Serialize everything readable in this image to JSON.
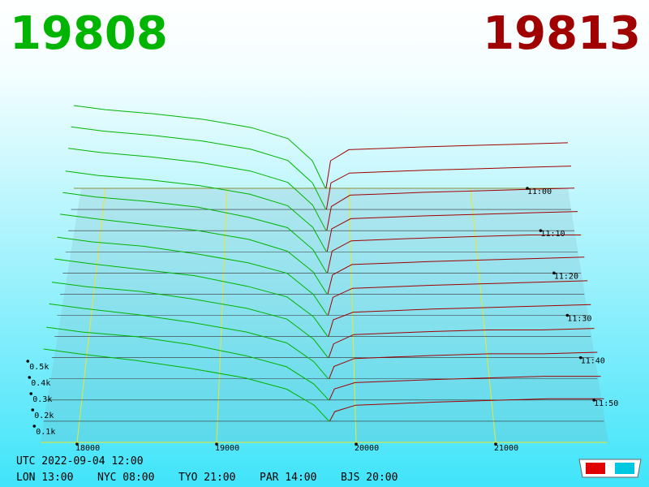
{
  "chart_data": {
    "type": "depth3d",
    "bid_price": "19808",
    "ask_price": "19813",
    "bid_color": "#00b400",
    "ask_color": "#a00000",
    "xlim": [
      17740,
      21800
    ],
    "xticks": [
      18000,
      19000,
      20000,
      21000
    ],
    "ylim": [
      0,
      0.6
    ],
    "yticks": [
      {
        "value": 0.1,
        "label": "0.1k"
      },
      {
        "value": 0.2,
        "label": "0.2k"
      },
      {
        "value": 0.3,
        "label": "0.3k"
      },
      {
        "value": 0.4,
        "label": "0.4k"
      },
      {
        "value": 0.5,
        "label": "0.5k"
      }
    ],
    "zlim": [
      "11:00",
      "12:00"
    ],
    "zticks": [
      "11:00",
      "11:10",
      "11:20",
      "11:30",
      "11:40",
      "11:50"
    ],
    "bid_prices": [
      17740,
      18000,
      18400,
      18800,
      19200,
      19500,
      19700,
      19808
    ],
    "ask_prices": [
      19813,
      19850,
      20000,
      20300,
      20600,
      21000,
      21400,
      21800
    ],
    "snapshots": [
      {
        "time": "11:00",
        "bids": [
          0.6,
          0.57,
          0.54,
          0.5,
          0.44,
          0.36,
          0.2,
          0
        ],
        "asks": [
          0,
          0.2,
          0.28,
          0.29,
          0.3,
          0.31,
          0.32,
          0.33
        ]
      },
      {
        "time": "11:05",
        "bids": [
          0.59,
          0.56,
          0.53,
          0.49,
          0.43,
          0.35,
          0.19,
          0
        ],
        "asks": [
          0,
          0.19,
          0.26,
          0.27,
          0.28,
          0.29,
          0.3,
          0.31
        ]
      },
      {
        "time": "11:10",
        "bids": [
          0.58,
          0.55,
          0.52,
          0.48,
          0.42,
          0.34,
          0.18,
          0
        ],
        "asks": [
          0,
          0.17,
          0.25,
          0.26,
          0.27,
          0.28,
          0.29,
          0.3
        ]
      },
      {
        "time": "11:15",
        "bids": [
          0.56,
          0.53,
          0.5,
          0.46,
          0.4,
          0.32,
          0.17,
          0
        ],
        "asks": [
          0,
          0.16,
          0.23,
          0.24,
          0.25,
          0.26,
          0.27,
          0.28
        ]
      },
      {
        "time": "11:20",
        "bids": [
          0.55,
          0.52,
          0.49,
          0.45,
          0.38,
          0.31,
          0.16,
          0
        ],
        "asks": [
          0,
          0.15,
          0.22,
          0.23,
          0.24,
          0.25,
          0.26,
          0.26
        ]
      },
      {
        "time": "11:25",
        "bids": [
          0.54,
          0.51,
          0.47,
          0.43,
          0.37,
          0.29,
          0.15,
          0
        ],
        "asks": [
          0,
          0.13,
          0.2,
          0.21,
          0.22,
          0.23,
          0.24,
          0.25
        ]
      },
      {
        "time": "11:30",
        "bids": [
          0.52,
          0.49,
          0.46,
          0.41,
          0.35,
          0.28,
          0.14,
          0
        ],
        "asks": [
          0,
          0.12,
          0.18,
          0.19,
          0.2,
          0.21,
          0.22,
          0.23
        ]
      },
      {
        "time": "11:35",
        "bids": [
          0.51,
          0.48,
          0.44,
          0.4,
          0.33,
          0.26,
          0.13,
          0
        ],
        "asks": [
          0,
          0.11,
          0.16,
          0.17,
          0.18,
          0.19,
          0.2,
          0.21
        ]
      },
      {
        "time": "11:40",
        "bids": [
          0.49,
          0.46,
          0.43,
          0.38,
          0.32,
          0.25,
          0.12,
          0
        ],
        "asks": [
          0,
          0.09,
          0.15,
          0.16,
          0.17,
          0.18,
          0.18,
          0.19
        ]
      },
      {
        "time": "11:45",
        "bids": [
          0.48,
          0.45,
          0.41,
          0.36,
          0.3,
          0.23,
          0.11,
          0
        ],
        "asks": [
          0,
          0.08,
          0.13,
          0.14,
          0.15,
          0.16,
          0.16,
          0.17
        ]
      },
      {
        "time": "11:50",
        "bids": [
          0.46,
          0.43,
          0.4,
          0.35,
          0.28,
          0.21,
          0.1,
          0
        ],
        "asks": [
          0,
          0.07,
          0.11,
          0.12,
          0.13,
          0.14,
          0.15,
          0.15
        ]
      },
      {
        "time": "11:55",
        "bids": [
          0.45,
          0.42,
          0.38,
          0.33,
          0.27,
          0.2,
          0.1,
          0
        ],
        "asks": [
          0,
          0.06,
          0.1,
          0.11,
          0.12,
          0.13,
          0.14,
          0.14
        ]
      }
    ],
    "footer_utc": "UTC 2022-09-04 12:00",
    "footer_cities": [
      "LON 13:00",
      "NYC 08:00",
      "TYO 21:00",
      "PAR 14:00",
      "BJS 20:00"
    ]
  }
}
